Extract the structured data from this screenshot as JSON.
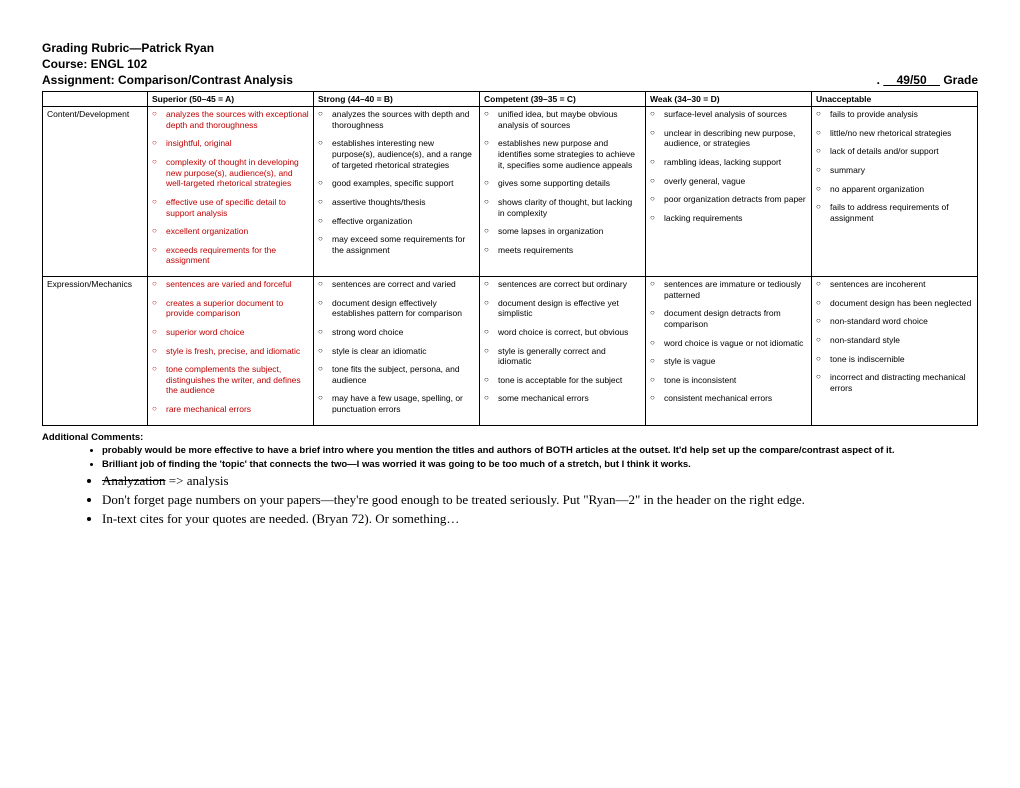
{
  "header": {
    "title": "Grading Rubric—Patrick Ryan",
    "course": "Course: ENGL 102",
    "assignment": "Assignment: Comparison/Contrast Analysis",
    "grade_prefix": ".",
    "grade_score": "49/50",
    "grade_suffix": "Grade"
  },
  "columns": {
    "blank": "",
    "superior": "Superior (50–45 = A)",
    "strong": "Strong (44–40 = B)",
    "competent": "Competent (39–35 = C)",
    "weak": "Weak (34–30 = D)",
    "unacceptable": "Unacceptable"
  },
  "row1": {
    "label": "Content/Development",
    "superior": [
      "analyzes the sources with exceptional depth and  thoroughness",
      "insightful, original",
      "complexity of thought in developing new purpose(s), audience(s), and well-targeted rhetorical strategies",
      "effective use of specific detail to support analysis",
      "excellent organization",
      "exceeds requirements for the  assignment"
    ],
    "strong": [
      "analyzes the sources with depth and thoroughness",
      "establishes interesting new purpose(s), audience(s), and a range of targeted rhetorical strategies",
      "good examples, specific support",
      "assertive thoughts/thesis",
      "effective organization",
      "may exceed some requirements for the assignment"
    ],
    "competent": [
      "unified idea, but maybe obvious analysis of sources",
      "establishes new purpose and identifies some strategies to achieve it, specifies some audience appeals",
      "gives some supporting details",
      "shows clarity of thought, but lacking in complexity",
      "some lapses in organization",
      "meets requirements"
    ],
    "weak": [
      "surface-level analysis of sources",
      "unclear in describing new purpose, audience, or strategies",
      "rambling ideas, lacking support",
      "overly general, vague",
      "poor organization detracts from paper",
      "lacking requirements"
    ],
    "unacceptable": [
      "fails to provide analysis",
      "little/no new rhetorical strategies",
      "lack of details and/or support",
      "summary",
      "no apparent organization",
      "fails to address requirements of assignment"
    ]
  },
  "row2": {
    "label": "Expression/Mechanics",
    "superior": [
      "sentences are varied and forceful",
      "creates a superior document to provide comparison",
      "superior word choice",
      "style is fresh, precise, and idiomatic",
      "tone complements the subject, distinguishes the writer, and defines the audience",
      "rare mechanical errors"
    ],
    "strong": [
      "sentences are correct and varied",
      "document design effectively establishes pattern for comparison",
      "strong word choice",
      "style is clear an idiomatic",
      "tone fits the subject, persona, and audience",
      "may have a few usage, spelling, or punctuation errors"
    ],
    "competent": [
      "sentences are correct but ordinary",
      "document design is effective yet simplistic",
      "word choice is correct, but obvious",
      "style is generally correct and idiomatic",
      "tone is acceptable for the subject",
      "some mechanical errors"
    ],
    "weak": [
      "sentences are immature or tediously patterned",
      "document design detracts from comparison",
      "word choice is vague or not idiomatic",
      "style is vague",
      "tone is inconsistent",
      "consistent mechanical errors"
    ],
    "unacceptable": [
      "sentences are incoherent",
      "document design has been neglected",
      "non-standard word choice",
      "non-standard style",
      "tone is indiscernible",
      "incorrect and distracting mechanical errors"
    ]
  },
  "comments": {
    "header": "Additional Comments:",
    "small": [
      "probably would be more effective to have a brief intro where you mention the titles and authors of BOTH articles at the outset. It'd help set up the compare/contrast aspect of it.",
      "Brilliant job of finding the 'topic' that connects the two—I was worried it was going to be too much of a stretch, but I think it works."
    ],
    "big_strike": "Analyzation",
    "big_strike_rest": " => analysis",
    "big": [
      "Don't forget page numbers on your papers—they're good enough to be treated seriously. Put \"Ryan—2\" in the header on the right edge.",
      "In-text cites for your quotes are needed. (Bryan 72). Or something…"
    ]
  },
  "colors": {
    "highlight": "#c00000"
  }
}
